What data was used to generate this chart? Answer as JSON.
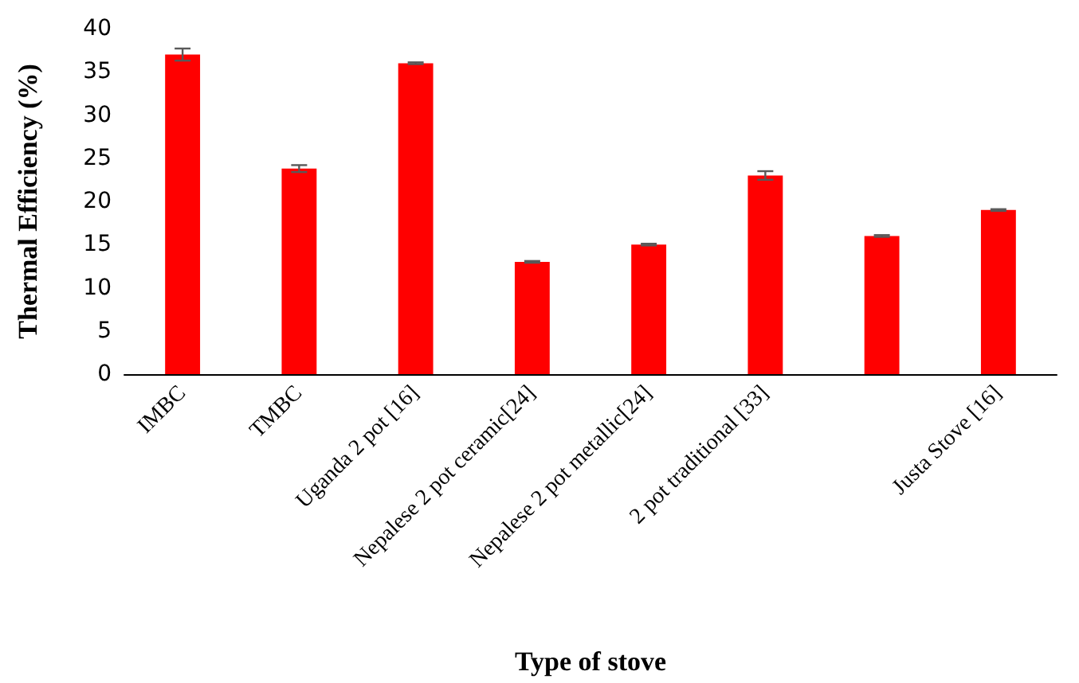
{
  "chart_data": {
    "type": "bar",
    "xlabel": "Type of stove",
    "ylabel": "Thermal Efficiency (%)",
    "categories": [
      "IMBC",
      "TMBC",
      "Uganda 2 pot [16]",
      "Nepalese 2 pot ceramic[24]",
      "Nepalese 2 pot metallic[24]",
      "2 pot traditional [33]",
      null,
      "Justa Stove [16]"
    ],
    "values": [
      37,
      23.8,
      36,
      13,
      15,
      23,
      16,
      19
    ],
    "errors": [
      0.7,
      0.4,
      0.1,
      0.1,
      0.1,
      0.5,
      0.1,
      0.1
    ],
    "color": "#ff0000",
    "ylim": [
      0,
      40
    ],
    "yticks": [
      0,
      5,
      10,
      15,
      20,
      25,
      30,
      35,
      40
    ]
  }
}
